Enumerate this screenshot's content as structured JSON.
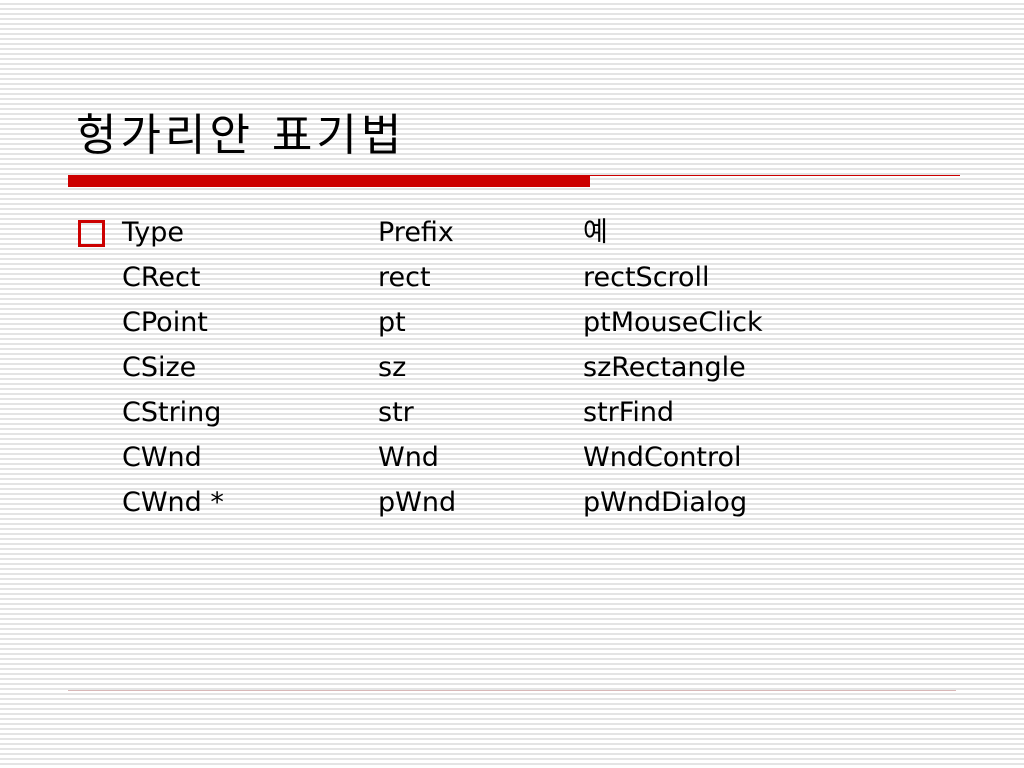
{
  "title": "헝가리안 표기법",
  "accent_color": "#cc0000",
  "bullet_icon": "hollow-square",
  "table": {
    "headers": [
      "Type",
      "Prefix",
      "예"
    ],
    "rows": [
      [
        "CRect",
        "rect",
        "rectScroll"
      ],
      [
        "CPoint",
        "pt",
        "ptMouseClick"
      ],
      [
        "CSize",
        "sz",
        "szRectangle"
      ],
      [
        "CString",
        "str",
        "strFind"
      ],
      [
        "CWnd",
        "Wnd",
        "WndControl"
      ],
      [
        "CWnd *",
        "pWnd",
        "pWndDialog"
      ]
    ]
  }
}
